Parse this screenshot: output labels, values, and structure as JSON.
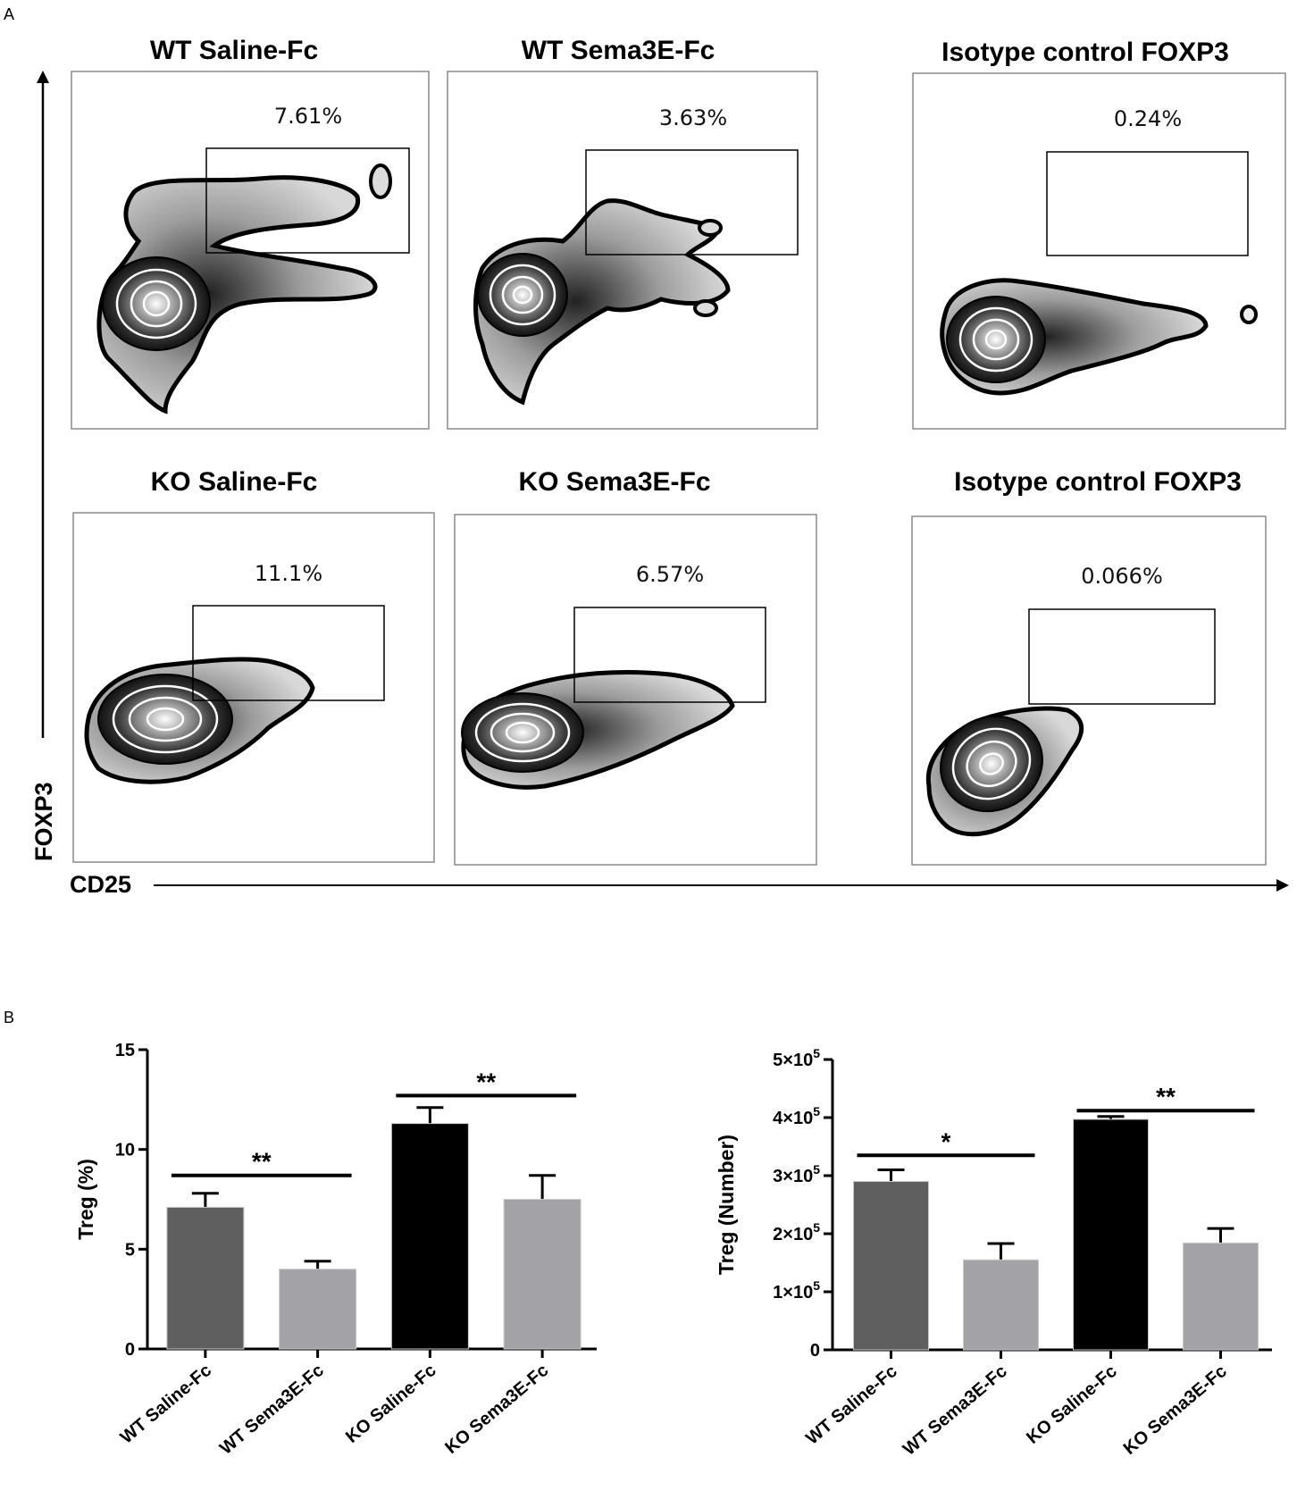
{
  "figure": {
    "panel_a_label": "A",
    "panel_b_label": "B",
    "y_axis_title": "FOXP3",
    "x_axis_title": "CD25"
  },
  "chart_data": [
    {
      "type": "scatter",
      "subtype": "flow-cytometry-contour",
      "xlabel": "CD25",
      "ylabel": "FOXP3",
      "panels": [
        {
          "title": "WT Saline-Fc",
          "gate_percent": "7.61%"
        },
        {
          "title": "WT Sema3E-Fc",
          "gate_percent": "3.63%"
        },
        {
          "title": "Isotype control FOXP3",
          "gate_percent": "0.24%"
        },
        {
          "title": "KO Saline-Fc",
          "gate_percent": "11.1%"
        },
        {
          "title": "KO Sema3E-Fc",
          "gate_percent": "6.57%"
        },
        {
          "title": "Isotype control FOXP3",
          "gate_percent": "0.066%"
        }
      ]
    },
    {
      "type": "bar",
      "categories": [
        "WT Saline-Fc",
        "WT Sema3E-Fc",
        "KO Saline-Fc",
        "KO Sema3E-Fc"
      ],
      "values": [
        7.1,
        4.0,
        11.3,
        7.5
      ],
      "errors": [
        0.7,
        0.4,
        0.8,
        1.2
      ],
      "colors": [
        "#5f5f5f",
        "#a3a3a7",
        "#000000",
        "#a3a3a7"
      ],
      "xlabel": "",
      "ylabel": "Treg (%)",
      "ylim": [
        0,
        15
      ],
      "yticks": [
        0,
        5,
        10,
        15
      ],
      "ytick_labels": [
        "0",
        "5",
        "10",
        "15"
      ],
      "significance": [
        {
          "from": 0,
          "to": 1,
          "y": 8.7,
          "label": "**"
        },
        {
          "from": 2,
          "to": 3,
          "y": 12.7,
          "label": "**"
        }
      ]
    },
    {
      "type": "bar",
      "categories": [
        "WT Saline-Fc",
        "WT Sema3E-Fc",
        "KO Saline-Fc",
        "KO Sema3E-Fc"
      ],
      "values": [
        290000,
        155000,
        397000,
        184000
      ],
      "errors": [
        20000,
        28000,
        5000,
        25000
      ],
      "colors": [
        "#5f5f5f",
        "#a3a3a7",
        "#000000",
        "#a3a3a7"
      ],
      "xlabel": "",
      "ylabel": "Treg (Number)",
      "ylim": [
        0,
        500000
      ],
      "yticks": [
        0,
        100000,
        200000,
        300000,
        400000,
        500000
      ],
      "ytick_labels": [
        "0",
        "1×10",
        "2×10",
        "3×10",
        "4×10",
        "5×10"
      ],
      "ytick_exponent": "5",
      "significance": [
        {
          "from": 0,
          "to": 1,
          "y": 335000,
          "label": "*"
        },
        {
          "from": 2,
          "to": 3,
          "y": 412000,
          "label": "**"
        }
      ]
    }
  ]
}
